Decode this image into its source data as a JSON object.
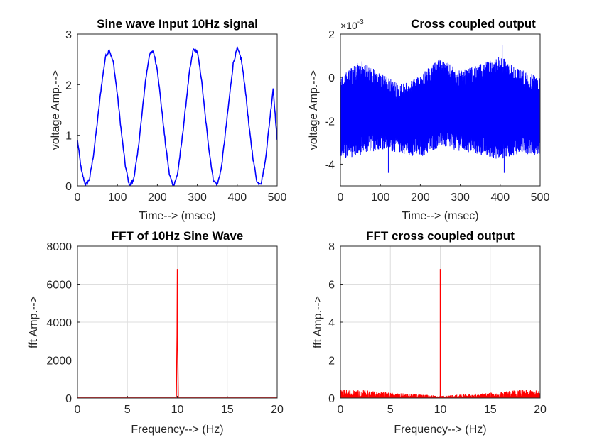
{
  "chart_data": [
    {
      "type": "line",
      "title": "Sine wave Input 10Hz signal",
      "xlabel": "Time--> (msec)",
      "ylabel": "voltage Amp.-->",
      "xlim": [
        0,
        500
      ],
      "ylim": [
        0,
        3
      ],
      "xticks": [
        0,
        100,
        200,
        300,
        400,
        500
      ],
      "yticks": [
        0,
        1,
        2,
        3
      ],
      "grid": false,
      "color": "#0000ff",
      "series": [
        {
          "x": [
            0,
            10,
            20,
            30,
            40,
            50,
            60,
            70,
            80,
            90,
            100,
            110,
            120,
            130,
            140,
            150,
            160,
            170,
            180,
            190,
            200,
            210,
            220,
            230,
            240,
            250,
            260,
            270,
            280,
            290,
            300,
            310,
            320,
            330,
            340,
            350,
            360,
            370,
            380,
            390,
            400,
            410,
            420,
            430,
            440,
            450,
            460,
            470,
            480,
            490,
            500
          ],
          "y": [
            0.9,
            0.29,
            0.02,
            0.13,
            0.61,
            1.28,
            1.98,
            2.55,
            2.68,
            2.43,
            1.8,
            1.05,
            0.39,
            0.0,
            0.11,
            0.6,
            1.3,
            2.06,
            2.59,
            2.66,
            2.3,
            1.58,
            0.85,
            0.23,
            0.0,
            0.21,
            0.8,
            1.5,
            2.23,
            2.7,
            2.65,
            2.14,
            1.37,
            0.68,
            0.12,
            0.02,
            0.34,
            1.02,
            1.72,
            2.42,
            2.72,
            2.51,
            1.93,
            1.14,
            0.52,
            0.06,
            0.06,
            0.47,
            1.2,
            1.93,
            0.88
          ]
        }
      ]
    },
    {
      "type": "line",
      "title": "Cross coupled output",
      "xlabel": "Time--> (msec)",
      "ylabel": "voltage Amp.-->",
      "xlim": [
        0,
        500
      ],
      "ylim": [
        -5,
        2
      ],
      "xticks": [
        0,
        100,
        200,
        300,
        400,
        500
      ],
      "yticks": [
        -4,
        -2,
        0,
        2
      ],
      "axis_multiplier": "×10-3",
      "grid": false,
      "color": "#0000ff",
      "band": {
        "x": [
          0,
          50,
          100,
          150,
          200,
          250,
          300,
          350,
          400,
          450,
          500
        ],
        "upper": [
          0.0,
          0.8,
          0.2,
          -0.3,
          0.1,
          0.9,
          0.3,
          0.6,
          1.0,
          0.4,
          0.0
        ],
        "lower": [
          -3.9,
          -3.6,
          -3.3,
          -3.5,
          -3.7,
          -3.2,
          -3.4,
          -3.6,
          -3.8,
          -3.5,
          -3.6
        ],
        "peaks": [
          {
            "x": 405,
            "y": 1.5
          },
          {
            "x": 120,
            "y": -4.4
          },
          {
            "x": 410,
            "y": -4.4
          }
        ]
      }
    },
    {
      "type": "line",
      "title": "FFT of 10Hz Sine Wave",
      "xlabel": "Frequency--> (Hz)",
      "ylabel": "fft Amp.-->",
      "xlim": [
        0,
        20
      ],
      "ylim": [
        0,
        8000
      ],
      "xticks": [
        0,
        5,
        10,
        15,
        20
      ],
      "yticks": [
        0,
        2000,
        4000,
        6000,
        8000
      ],
      "grid": true,
      "color": "#ff0000",
      "series": [
        {
          "x": [
            0,
            9.9,
            9.97,
            10.0,
            10.03,
            10.1,
            20
          ],
          "y": [
            10,
            10,
            3300,
            6800,
            3300,
            10,
            10
          ]
        }
      ]
    },
    {
      "type": "line",
      "title": "FFT cross coupled output",
      "xlabel": "Frequency--> (Hz)",
      "ylabel": "fft Amp.-->",
      "xlim": [
        0,
        20
      ],
      "ylim": [
        0,
        8
      ],
      "xticks": [
        0,
        5,
        10,
        15,
        20
      ],
      "yticks": [
        0,
        2,
        4,
        6,
        8
      ],
      "grid": true,
      "color": "#ff0000",
      "noise_floor": {
        "x": [
          0,
          2,
          4,
          6,
          8,
          9.8,
          10.2,
          12,
          14,
          16,
          18,
          20
        ],
        "upper": [
          0.45,
          0.45,
          0.32,
          0.25,
          0.2,
          0.12,
          0.12,
          0.2,
          0.25,
          0.32,
          0.45,
          0.4
        ]
      },
      "peak": {
        "x": 10.0,
        "y": 6.8
      }
    }
  ]
}
